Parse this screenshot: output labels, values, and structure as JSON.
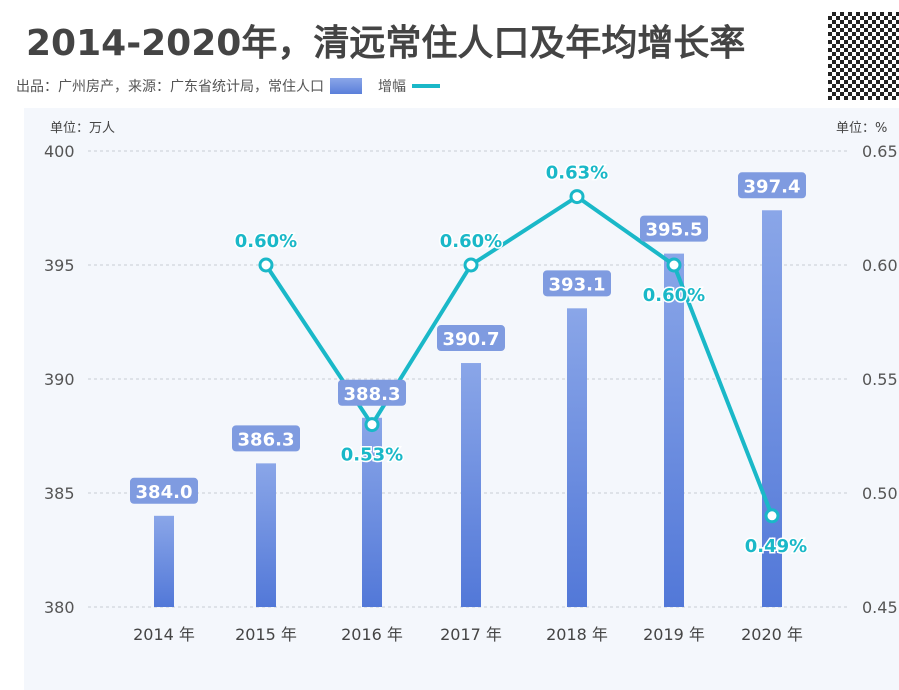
{
  "title": "2014-2020年，清远常住人口及年均增长率",
  "subtitle": "出品：广州房产，来源：广东省统计局，常住人口",
  "colors": {
    "bar_top": "#8aa6e8",
    "bar_bottom": "#5278d8",
    "line": "#1ab8c8",
    "label_box": "#7f9be0"
  },
  "chart_data": {
    "type": "bar+line",
    "categories": [
      "2014 年",
      "2015 年",
      "2016 年",
      "2017 年",
      "2018 年",
      "2019 年",
      "2020 年"
    ],
    "series": [
      {
        "name": "常住人口",
        "type": "bar",
        "axis": "left",
        "values": [
          384.0,
          386.3,
          388.3,
          390.7,
          393.1,
          395.5,
          397.4
        ],
        "labels": [
          "384.0",
          "386.3",
          "388.3",
          "390.7",
          "393.1",
          "395.5",
          "397.4"
        ]
      },
      {
        "name": "增幅",
        "type": "line",
        "axis": "right",
        "values": [
          null,
          0.6,
          0.53,
          0.6,
          0.63,
          0.6,
          0.49
        ],
        "labels": [
          "",
          "0.60%",
          "0.53%",
          "0.60%",
          "0.63%",
          "0.60%",
          "0.49%"
        ]
      }
    ],
    "left_axis": {
      "unit": "单位：万人",
      "ylim": [
        380,
        400
      ],
      "ticks": [
        "380",
        "385",
        "390",
        "395",
        "400"
      ]
    },
    "right_axis": {
      "unit": "单位：%",
      "ylim": [
        0.45,
        0.65
      ],
      "ticks": [
        "0.45",
        "0.50",
        "0.55",
        "0.60",
        "0.65"
      ]
    },
    "grid": true,
    "legend": "top-left"
  }
}
